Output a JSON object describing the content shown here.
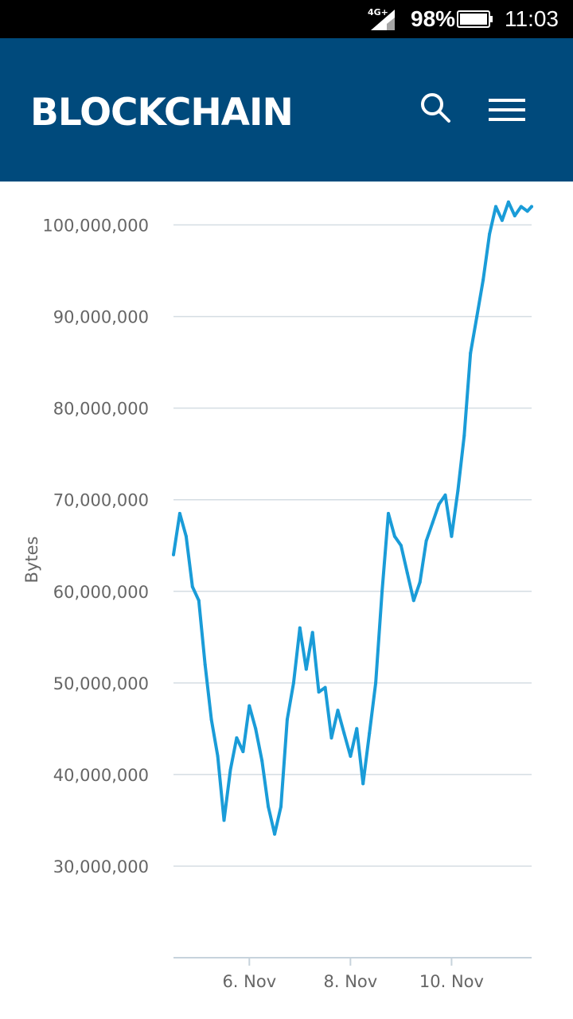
{
  "status_bar": {
    "network": "4G+",
    "battery": "98%",
    "time": "11:03"
  },
  "header": {
    "brand": "BLOCKCHAIN",
    "search_icon": "search-icon",
    "menu_icon": "hamburger-menu-icon"
  },
  "colors": {
    "header_bg": "#004a7c",
    "line": "#1a9cd8",
    "grid": "#d5dde3",
    "axis": "#c7d3dc",
    "tick_text": "#666666"
  },
  "chart_data": {
    "type": "line",
    "title": "",
    "xlabel": "",
    "ylabel": "Bytes",
    "x_ticks": [
      "6. Nov",
      "8. Nov",
      "10. Nov"
    ],
    "y_ticks": [
      "30,000,000",
      "40,000,000",
      "50,000,000",
      "60,000,000",
      "70,000,000",
      "80,000,000",
      "90,000,000",
      "100,000,000"
    ],
    "xlim": [
      "2017-11-04 12:00",
      "2017-11-11 14:00"
    ],
    "ylim": [
      20000000,
      103000000
    ],
    "grid": true,
    "legend": "none",
    "series": [
      {
        "x": [
          "2017-11-04 12:00",
          "2017-11-04 15:00",
          "2017-11-04 18:00",
          "2017-11-04 21:00",
          "2017-11-05 00:00",
          "2017-11-05 03:00",
          "2017-11-05 06:00",
          "2017-11-05 09:00",
          "2017-11-05 12:00",
          "2017-11-05 15:00",
          "2017-11-05 18:00",
          "2017-11-05 21:00",
          "2017-11-06 00:00",
          "2017-11-06 03:00",
          "2017-11-06 06:00",
          "2017-11-06 09:00",
          "2017-11-06 12:00",
          "2017-11-06 15:00",
          "2017-11-06 18:00",
          "2017-11-06 21:00",
          "2017-11-07 00:00",
          "2017-11-07 03:00",
          "2017-11-07 06:00",
          "2017-11-07 09:00",
          "2017-11-07 12:00",
          "2017-11-07 15:00",
          "2017-11-07 18:00",
          "2017-11-07 21:00",
          "2017-11-08 00:00",
          "2017-11-08 03:00",
          "2017-11-08 06:00",
          "2017-11-08 09:00",
          "2017-11-08 12:00",
          "2017-11-08 15:00",
          "2017-11-08 18:00",
          "2017-11-08 21:00",
          "2017-11-09 00:00",
          "2017-11-09 03:00",
          "2017-11-09 06:00",
          "2017-11-09 09:00",
          "2017-11-09 12:00",
          "2017-11-09 15:00",
          "2017-11-09 18:00",
          "2017-11-09 21:00",
          "2017-11-10 00:00",
          "2017-11-10 03:00",
          "2017-11-10 06:00",
          "2017-11-10 09:00",
          "2017-11-10 12:00",
          "2017-11-10 15:00",
          "2017-11-10 18:00",
          "2017-11-10 21:00",
          "2017-11-11 00:00",
          "2017-11-11 03:00",
          "2017-11-11 06:00",
          "2017-11-11 09:00",
          "2017-11-11 12:00",
          "2017-11-11 14:00"
        ],
        "values": [
          64000000,
          68500000,
          66000000,
          60500000,
          59000000,
          52000000,
          46000000,
          42000000,
          35000000,
          40500000,
          44000000,
          42500000,
          47500000,
          45000000,
          41500000,
          36500000,
          33500000,
          36500000,
          46000000,
          50000000,
          56000000,
          51500000,
          55500000,
          49000000,
          49500000,
          44000000,
          47000000,
          44500000,
          42000000,
          45000000,
          39000000,
          44500000,
          50000000,
          60000000,
          68500000,
          66000000,
          65000000,
          62000000,
          59000000,
          61000000,
          65500000,
          67500000,
          69500000,
          70500000,
          66000000,
          71000000,
          77000000,
          86000000,
          90000000,
          94000000,
          99000000,
          102000000,
          100500000,
          102500000,
          101000000,
          102000000,
          101500000,
          102000000
        ]
      }
    ]
  }
}
